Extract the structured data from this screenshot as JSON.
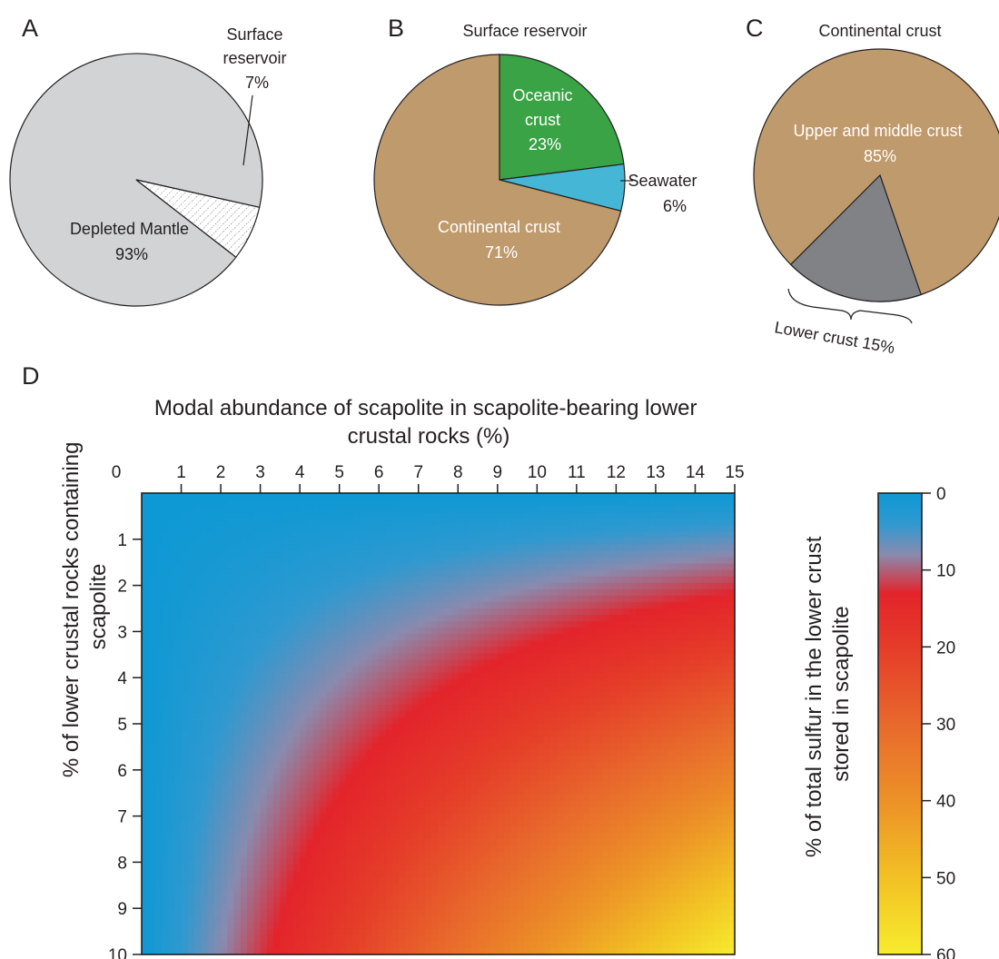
{
  "chart_data": [
    {
      "panel": "A",
      "type": "pie",
      "title": "",
      "slices": [
        {
          "name": "Depleted Mantle",
          "value": 93,
          "label": "93%",
          "color": "#d1d3d4"
        },
        {
          "name": "Surface\nreservoir",
          "value": 7,
          "label": "7%",
          "color": "#ffffff",
          "pattern": "hatched"
        }
      ]
    },
    {
      "panel": "B",
      "type": "pie",
      "title": "Surface reservoir",
      "slices": [
        {
          "name": "Oceanic\ncrust",
          "value": 23,
          "label": "23%",
          "color": "#3aa345"
        },
        {
          "name": "Seawater",
          "value": 6,
          "label": "6%",
          "color": "#45b6d6"
        },
        {
          "name": "Continental crust",
          "value": 71,
          "label": "71%",
          "color": "#bf9a6c"
        }
      ]
    },
    {
      "panel": "C",
      "type": "pie",
      "title": "Continental crust",
      "slices": [
        {
          "name": "Upper and middle crust",
          "value": 85,
          "label": "85%",
          "color": "#bf9a6c"
        },
        {
          "name": "Lower crust",
          "value": 15,
          "label": "15%",
          "color": "#808285"
        }
      ]
    },
    {
      "panel": "D",
      "type": "heatmap",
      "title": "",
      "xlabel": "Modal abundance of scapolite in scapolite-bearing lower\ncrustal rocks (%)",
      "ylabel": "% of lower crustal rocks containing\nscapolite",
      "xlim": [
        0,
        15
      ],
      "ylim": [
        0,
        10
      ],
      "x_ticks": [
        0,
        1,
        2,
        3,
        4,
        5,
        6,
        7,
        8,
        9,
        10,
        11,
        12,
        13,
        14,
        15
      ],
      "y_ticks": [
        1,
        2,
        3,
        4,
        5,
        6,
        7,
        8,
        9,
        10
      ],
      "colorbar": {
        "label": "% of total sulfur in the lower crust\nstored in scapolite",
        "ticks": [
          0,
          10,
          20,
          30,
          40,
          50,
          60
        ],
        "range": [
          0,
          60
        ],
        "stops": [
          {
            "value": 0,
            "color": "#0e99d4"
          },
          {
            "value": 4,
            "color": "#2f99d0"
          },
          {
            "value": 8,
            "color": "#8a8aae"
          },
          {
            "value": 13,
            "color": "#e3242b"
          },
          {
            "value": 20,
            "color": "#e53c29"
          },
          {
            "value": 30,
            "color": "#e8692c"
          },
          {
            "value": 40,
            "color": "#ec9127"
          },
          {
            "value": 50,
            "color": "#f2c124"
          },
          {
            "value": 60,
            "color": "#f7ec2e"
          }
        ]
      },
      "model": "value ≈ 0.4 × x × y (% of total sulfur)"
    }
  ]
}
